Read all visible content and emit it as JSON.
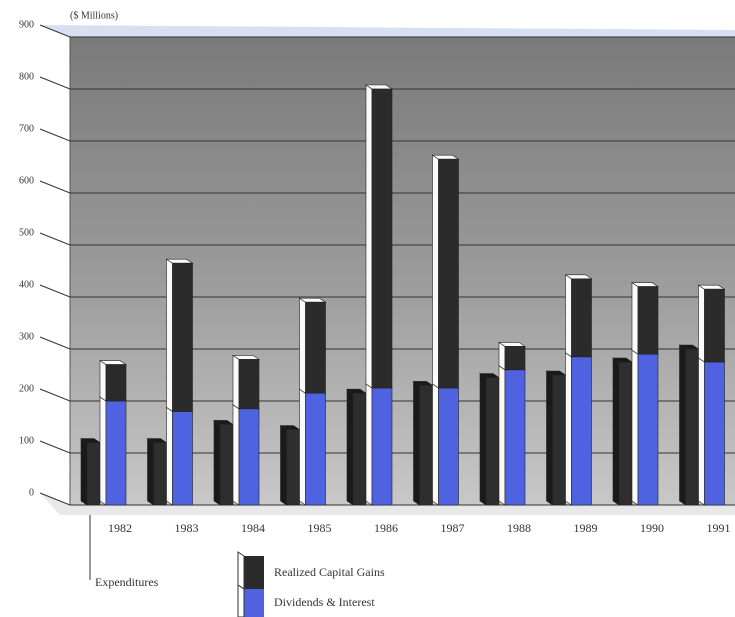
{
  "chart_data": {
    "type": "bar",
    "stacked": true,
    "y_axis_label": "($ Millions)",
    "categories": [
      "1982",
      "1983",
      "1984",
      "1985",
      "1986",
      "1987",
      "1988",
      "1989",
      "1990",
      "1991"
    ],
    "series": [
      {
        "name": "Expenditures",
        "color": "#2e2e2e",
        "values": [
          120,
          120,
          155,
          145,
          215,
          230,
          245,
          250,
          275,
          300
        ]
      },
      {
        "name": "Dividends & Interest",
        "color": "#4f63e0",
        "stack": "income",
        "values": [
          200,
          180,
          185,
          215,
          225,
          225,
          260,
          285,
          290,
          275
        ]
      },
      {
        "name": "Realized Capital Gains",
        "color": "#2b2b2b",
        "stack": "income",
        "values": [
          70,
          285,
          95,
          175,
          575,
          440,
          45,
          150,
          130,
          140
        ]
      }
    ],
    "ylim": [
      0,
      900
    ],
    "yticks": [
      0,
      100,
      200,
      300,
      400,
      500,
      600,
      700,
      800,
      900
    ],
    "grid": true
  }
}
